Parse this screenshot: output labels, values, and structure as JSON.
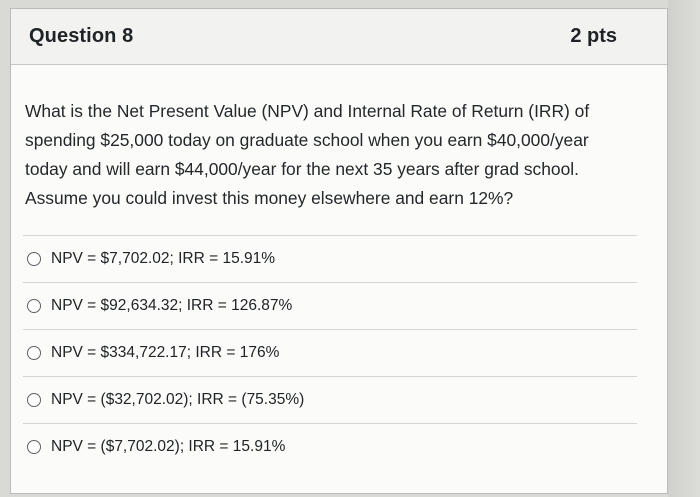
{
  "question": {
    "title": "Question 8",
    "points": "2 pts",
    "text": "What is the Net Present Value (NPV) and Internal Rate of Return (IRR) of spending $25,000 today on graduate school when you earn $40,000/year today and will earn $44,000/year for the next 35 years after grad school. Assume you could invest this money elsewhere and earn 12%?"
  },
  "answers": [
    {
      "label": "NPV = $7,702.02; IRR = 15.91%"
    },
    {
      "label": "NPV = $92,634.32; IRR = 126.87%"
    },
    {
      "label": "NPV = $334,722.17; IRR = 176%"
    },
    {
      "label": "NPV = ($32,702.02); IRR = (75.35%)"
    },
    {
      "label": "NPV = ($7,702.02); IRR = 15.91%"
    }
  ]
}
